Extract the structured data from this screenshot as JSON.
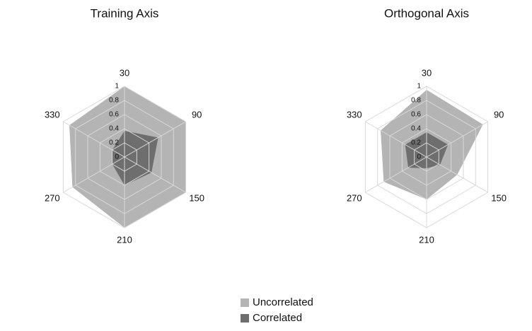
{
  "chart_data": [
    {
      "type": "radar",
      "title": "Training Axis",
      "categories": [
        "30",
        "90",
        "150",
        "210",
        "270",
        "330"
      ],
      "ylim": [
        0,
        1
      ],
      "yticks": [
        0,
        0.2,
        0.4,
        0.6,
        0.8,
        1
      ],
      "grid": true,
      "series": [
        {
          "name": "Uncorrelated",
          "color": "#b4b4b4",
          "values": [
            1,
            1,
            1,
            1,
            0.85,
            0.9
          ]
        },
        {
          "name": "Correlated",
          "color": "#6e6e6e",
          "values": [
            0.37,
            0.55,
            0.44,
            0.4,
            0.2,
            0.2
          ]
        }
      ]
    },
    {
      "type": "radar",
      "title": "Orthogonal Axis",
      "categories": [
        "30",
        "90",
        "150",
        "210",
        "270",
        "330"
      ],
      "ylim": [
        0,
        1
      ],
      "yticks": [
        0,
        0.2,
        0.4,
        0.6,
        0.8,
        1
      ],
      "grid": true,
      "series": [
        {
          "name": "Uncorrelated",
          "color": "#b4b4b4",
          "values": [
            0.95,
            0.92,
            0.5,
            0.6,
            0.7,
            0.75
          ]
        },
        {
          "name": "Correlated",
          "color": "#6e6e6e",
          "values": [
            0.35,
            0.35,
            0.22,
            0.16,
            0.3,
            0.35
          ]
        }
      ]
    }
  ]
}
